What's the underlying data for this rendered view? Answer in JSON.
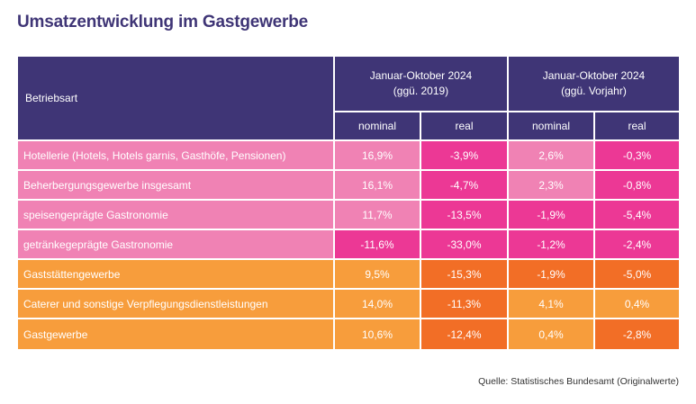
{
  "title": "Umsatzentwicklung im Gastgewerbe",
  "colors": {
    "header": "#3f3576",
    "pink_light": "#f082b4",
    "pink_dark": "#ec3895",
    "orange_light": "#f79d3c",
    "orange_dark": "#f26e26"
  },
  "table": {
    "row_header": "Betriebsart",
    "groups": [
      {
        "line1": "Januar-Oktober 2024",
        "line2": "(ggü. 2019)"
      },
      {
        "line1": "Januar-Oktober 2024",
        "line2": "(ggü. Vorjahr)"
      }
    ],
    "subheaders": [
      "nominal",
      "real",
      "nominal",
      "real"
    ],
    "rows": [
      {
        "label": "Hotellerie (Hotels, Hotels garnis, Gasthöfe, Pensionen)",
        "group": "pink",
        "values": [
          "16,9%",
          "-3,9%",
          "2,6%",
          "-0,3%"
        ]
      },
      {
        "label": "Beherbergungsgewerbe insgesamt",
        "group": "pink",
        "values": [
          "16,1%",
          "-4,7%",
          "2,3%",
          "-0,8%"
        ]
      },
      {
        "label": "speisengeprägte Gastronomie",
        "group": "pink",
        "values": [
          "11,7%",
          "-13,5%",
          "-1,9%",
          "-5,4%"
        ]
      },
      {
        "label": "getränkegeprägte Gastronomie",
        "group": "pink",
        "values": [
          "-11,6%",
          "-33,0%",
          "-1,2%",
          "-2,4%"
        ]
      },
      {
        "label": "Gaststättengewerbe",
        "group": "orange",
        "values": [
          "9,5%",
          "-15,3%",
          "-1,9%",
          "-5,0%"
        ]
      },
      {
        "label": "Caterer und sonstige Verpflegungsdienstleistungen",
        "group": "orange",
        "values": [
          "14,0%",
          "-11,3%",
          "4,1%",
          "0,4%"
        ]
      },
      {
        "label": "Gastgewerbe",
        "group": "orange",
        "values": [
          "10,6%",
          "-12,4%",
          "0,4%",
          "-2,8%"
        ]
      }
    ]
  },
  "source": "Quelle: Statistisches Bundesamt (Originalwerte)"
}
